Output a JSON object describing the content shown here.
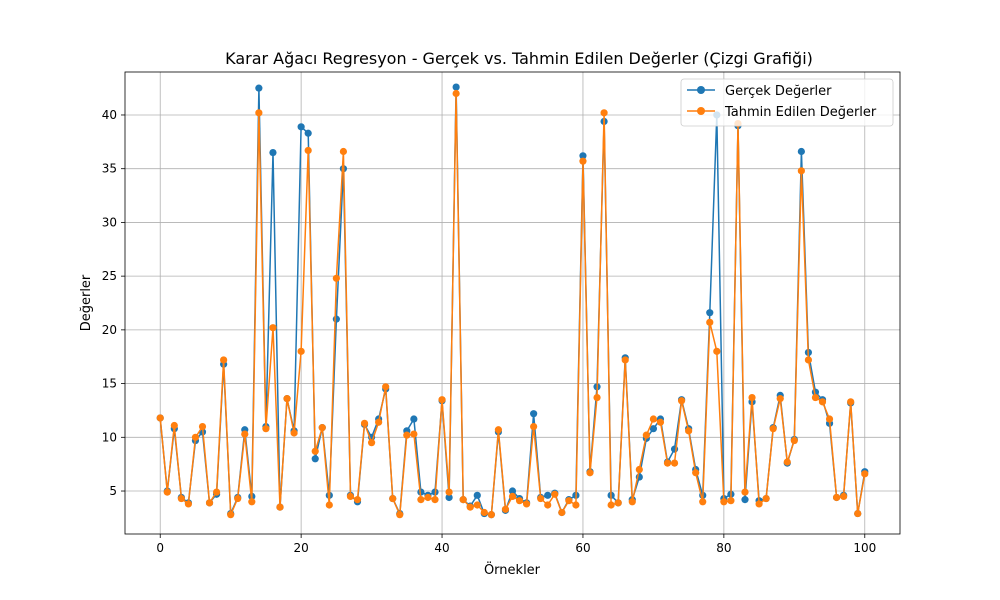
{
  "chart_data": {
    "type": "line",
    "title": "Karar Ağacı Regresyon - Gerçek vs. Tahmin Edilen Değerler (Çizgi Grafiği)",
    "xlabel": "Örnekler",
    "ylabel": "Değerler",
    "xlim": [
      -5,
      105
    ],
    "ylim": [
      1,
      44
    ],
    "xticks": [
      0,
      20,
      40,
      60,
      80,
      100
    ],
    "yticks": [
      5,
      10,
      15,
      20,
      25,
      30,
      35,
      40
    ],
    "grid": true,
    "legend_position": "top-right",
    "series": [
      {
        "name": "Gerçek Değerler",
        "color": "#1f77b4",
        "marker": "circle",
        "values": [
          11.8,
          5.0,
          10.8,
          4.4,
          3.9,
          9.7,
          10.5,
          3.9,
          4.7,
          16.8,
          2.9,
          4.4,
          10.7,
          4.5,
          42.5,
          11.0,
          36.5,
          3.5,
          13.6,
          10.6,
          38.9,
          38.3,
          8.0,
          10.9,
          4.6,
          21.0,
          35.0,
          4.6,
          4.0,
          11.2,
          10.0,
          11.7,
          14.5,
          4.3,
          2.9,
          10.6,
          11.7,
          4.9,
          4.6,
          4.9,
          13.4,
          4.4,
          42.6,
          4.2,
          3.6,
          4.6,
          2.9,
          2.8,
          10.5,
          3.2,
          5.0,
          4.3,
          3.9,
          12.2,
          4.4,
          4.6,
          4.8,
          3.0,
          4.2,
          4.6,
          36.2,
          6.8,
          14.7,
          39.4,
          4.6,
          3.9,
          17.4,
          4.2,
          6.3,
          9.9,
          10.8,
          11.7,
          7.7,
          8.9,
          13.5,
          10.8,
          7.0,
          4.6,
          21.6,
          40.0,
          4.3,
          4.7,
          39.0,
          4.2,
          13.3,
          4.1,
          4.3,
          10.9,
          13.9,
          7.6,
          9.8,
          36.6,
          17.9,
          14.2,
          13.5,
          11.3,
          4.4,
          4.6,
          13.2,
          2.9,
          6.8
        ]
      },
      {
        "name": "Tahmin Edilen Değerler",
        "color": "#ff7f0e",
        "marker": "circle",
        "values": [
          11.8,
          4.9,
          11.1,
          4.3,
          3.8,
          10.0,
          11.0,
          3.9,
          4.9,
          17.2,
          2.8,
          4.3,
          10.3,
          4.0,
          40.2,
          10.8,
          20.2,
          3.5,
          13.6,
          10.4,
          18.0,
          36.7,
          8.7,
          10.9,
          3.7,
          24.8,
          36.6,
          4.5,
          4.2,
          11.3,
          9.5,
          11.4,
          14.7,
          4.3,
          2.8,
          10.2,
          10.3,
          4.2,
          4.4,
          4.2,
          13.5,
          4.9,
          42.0,
          4.2,
          3.5,
          3.7,
          3.0,
          2.8,
          10.7,
          3.3,
          4.5,
          4.1,
          3.8,
          11.0,
          4.3,
          3.7,
          4.7,
          3.0,
          4.1,
          3.7,
          35.7,
          6.7,
          13.7,
          40.2,
          3.7,
          3.9,
          17.2,
          4.0,
          7.0,
          10.2,
          11.7,
          11.4,
          7.6,
          7.6,
          13.4,
          10.6,
          6.7,
          4.0,
          20.7,
          18.0,
          4.0,
          4.1,
          39.2,
          4.9,
          13.7,
          3.8,
          4.3,
          10.8,
          13.6,
          7.7,
          9.7,
          34.8,
          17.2,
          13.7,
          13.3,
          11.7,
          4.4,
          4.5,
          13.3,
          2.9,
          6.6
        ]
      }
    ]
  }
}
